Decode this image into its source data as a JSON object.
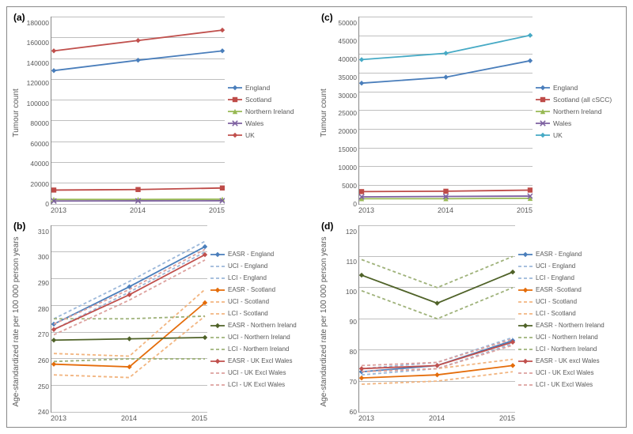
{
  "panels": {
    "a": {
      "label": "(a)",
      "y_axis_label": "Tumour count",
      "ylim": [
        0,
        180000
      ],
      "y_ticks": [
        "180000",
        "160000",
        "140000",
        "120000",
        "100000",
        "80000",
        "60000",
        "40000",
        "20000",
        "0"
      ],
      "x_ticks": [
        "2013",
        "2014",
        "2015"
      ],
      "series": [
        {
          "name": "England",
          "color": "#4a7ebb",
          "dash": "",
          "marker": "diamond",
          "values": [
            128000,
            138000,
            147000
          ]
        },
        {
          "name": "Scotland",
          "color": "#be4b48",
          "dash": "",
          "marker": "square",
          "values": [
            13000,
            13500,
            15000
          ]
        },
        {
          "name": "Northern Ireland",
          "color": "#98b954",
          "dash": "",
          "marker": "triangle",
          "values": [
            4000,
            4000,
            4200
          ]
        },
        {
          "name": "Wales",
          "color": "#7d60a0",
          "dash": "",
          "marker": "x",
          "values": [
            2500,
            2600,
            2700
          ]
        },
        {
          "name": "UK",
          "color": "#c0504d",
          "dash": "",
          "marker": "diamond",
          "values": [
            147000,
            157000,
            167000
          ]
        }
      ]
    },
    "c": {
      "label": "(c)",
      "y_axis_label": "Tumour count",
      "ylim": [
        0,
        50000
      ],
      "y_ticks": [
        "50000",
        "45000",
        "40000",
        "35000",
        "30000",
        "25000",
        "20000",
        "15000",
        "10000",
        "5000",
        "0"
      ],
      "x_ticks": [
        "2013",
        "2014",
        "2015"
      ],
      "series": [
        {
          "name": "England",
          "color": "#4a7ebb",
          "dash": "",
          "marker": "diamond",
          "values": [
            32200,
            33800,
            38200
          ]
        },
        {
          "name": "Scotland (all cSCC)",
          "color": "#be4b48",
          "dash": "",
          "marker": "square",
          "values": [
            3200,
            3300,
            3600
          ]
        },
        {
          "name": "Northern Ireland",
          "color": "#98b954",
          "dash": "",
          "marker": "triangle",
          "values": [
            1300,
            1300,
            1400
          ]
        },
        {
          "name": "Wales",
          "color": "#7d60a0",
          "dash": "",
          "marker": "x",
          "values": [
            1800,
            1900,
            2000
          ]
        },
        {
          "name": "UK",
          "color": "#46aac5",
          "dash": "",
          "marker": "diamond",
          "values": [
            38500,
            40200,
            45000
          ]
        }
      ]
    },
    "b": {
      "label": "(b)",
      "y_axis_label": "Age-standardized rate per 100 000 person years",
      "ylim": [
        240,
        310
      ],
      "y_ticks": [
        "310",
        "300",
        "290",
        "280",
        "270",
        "260",
        "250",
        "240"
      ],
      "x_ticks": [
        "2013",
        "2014",
        "2015"
      ],
      "series": [
        {
          "name": "EASR - England",
          "color": "#4a7ebb",
          "dash": "",
          "marker": "diamond",
          "values": [
            273,
            287,
            302
          ]
        },
        {
          "name": "UCI - England",
          "color": "#9cb8da",
          "dash": "4,3",
          "marker": "",
          "values": [
            275,
            289,
            304
          ]
        },
        {
          "name": "LCI - England",
          "color": "#9cb8da",
          "dash": "4,3",
          "marker": "",
          "values": [
            271,
            285,
            300
          ]
        },
        {
          "name": "EASR - Scotland",
          "color": "#e46c0a",
          "dash": "",
          "marker": "diamond",
          "values": [
            258,
            257,
            281
          ]
        },
        {
          "name": "UCI - Scotland",
          "color": "#f2b580",
          "dash": "4,3",
          "marker": "",
          "values": [
            262,
            261,
            286
          ]
        },
        {
          "name": "LCI - Scotland",
          "color": "#f2b580",
          "dash": "4,3",
          "marker": "",
          "values": [
            254,
            253,
            276
          ]
        },
        {
          "name": "EASR - Northern Ireland",
          "color": "#4f6228",
          "dash": "",
          "marker": "diamond",
          "values": [
            267,
            267.5,
            268
          ]
        },
        {
          "name": "UCI - Northern Ireland",
          "color": "#9fb27a",
          "dash": "4,3",
          "marker": "",
          "values": [
            275,
            275,
            276
          ]
        },
        {
          "name": "LCI - Northern Ireland",
          "color": "#9fb27a",
          "dash": "4,3",
          "marker": "",
          "values": [
            259,
            260,
            260
          ]
        },
        {
          "name": "EASR - UK Excl Wales",
          "color": "#c0504d",
          "dash": "",
          "marker": "diamond",
          "values": [
            271,
            284,
            299
          ]
        },
        {
          "name": "UCI - UK Excl Wales",
          "color": "#dda19e",
          "dash": "4,3",
          "marker": "",
          "values": [
            273,
            286,
            301
          ]
        },
        {
          "name": "LCI - UK Excl Wales",
          "color": "#dda19e",
          "dash": "4,3",
          "marker": "",
          "values": [
            269,
            282,
            297
          ]
        }
      ]
    },
    "d": {
      "label": "(d)",
      "y_axis_label": "Age-standardized rate per 100 000 person years",
      "ylim": [
        60,
        120
      ],
      "y_ticks": [
        "120",
        "110",
        "100",
        "90",
        "80",
        "70",
        "60"
      ],
      "x_ticks": [
        "2013",
        "2014",
        "2015"
      ],
      "series": [
        {
          "name": "EASR - England",
          "color": "#4a7ebb",
          "dash": "",
          "marker": "diamond",
          "values": [
            73,
            75,
            83
          ]
        },
        {
          "name": "UCI - England",
          "color": "#9cb8da",
          "dash": "4,3",
          "marker": "",
          "values": [
            74,
            76,
            84
          ]
        },
        {
          "name": "LCI - England",
          "color": "#9cb8da",
          "dash": "4,3",
          "marker": "",
          "values": [
            72,
            74,
            82
          ]
        },
        {
          "name": "EASR -Scotland",
          "color": "#e46c0a",
          "dash": "",
          "marker": "diamond",
          "values": [
            71,
            72,
            75
          ]
        },
        {
          "name": "UCI - Scotland",
          "color": "#f2b580",
          "dash": "4,3",
          "marker": "",
          "values": [
            73,
            74,
            77
          ]
        },
        {
          "name": "LCI - Scotland",
          "color": "#f2b580",
          "dash": "4,3",
          "marker": "",
          "values": [
            69,
            70,
            73
          ]
        },
        {
          "name": "EASR - Northern Ireland",
          "color": "#4f6228",
          "dash": "",
          "marker": "diamond",
          "values": [
            104,
            95,
            105
          ]
        },
        {
          "name": "UCI - Northern Ireland",
          "color": "#9fb27a",
          "dash": "4,3",
          "marker": "",
          "values": [
            109,
            100,
            110
          ]
        },
        {
          "name": "LCI - Northern Ireland",
          "color": "#9fb27a",
          "dash": "4,3",
          "marker": "",
          "values": [
            99,
            90,
            100
          ]
        },
        {
          "name": "EASR - UK excl Wales",
          "color": "#c0504d",
          "dash": "",
          "marker": "diamond",
          "values": [
            74,
            75,
            82.5
          ]
        },
        {
          "name": "UCI - UK Excl Wales",
          "color": "#dda19e",
          "dash": "4,3",
          "marker": "",
          "values": [
            75,
            76,
            83.5
          ]
        },
        {
          "name": "LCI - UK Excl Wales",
          "color": "#dda19e",
          "dash": "4,3",
          "marker": "",
          "values": [
            73,
            74,
            81.5
          ]
        }
      ]
    }
  }
}
